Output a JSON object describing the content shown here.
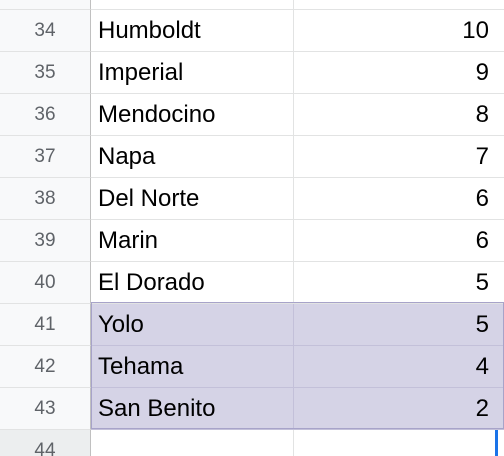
{
  "sheet": {
    "rows": [
      {
        "number": "34",
        "county": "Humboldt",
        "value": "10",
        "selected": false
      },
      {
        "number": "35",
        "county": "Imperial",
        "value": "9",
        "selected": false
      },
      {
        "number": "36",
        "county": "Mendocino",
        "value": "8",
        "selected": false
      },
      {
        "number": "37",
        "county": "Napa",
        "value": "7",
        "selected": false
      },
      {
        "number": "38",
        "county": "Del Norte",
        "value": "6",
        "selected": false
      },
      {
        "number": "39",
        "county": "Marin",
        "value": "6",
        "selected": false
      },
      {
        "number": "40",
        "county": "El Dorado",
        "value": "5",
        "selected": false
      },
      {
        "number": "41",
        "county": "Yolo",
        "value": "5",
        "selected": true
      },
      {
        "number": "42",
        "county": "Tehama",
        "value": "4",
        "selected": true
      },
      {
        "number": "43",
        "county": "San Benito",
        "value": "2",
        "selected": true
      },
      {
        "number": "44",
        "county": "",
        "value": "",
        "selected": false
      }
    ],
    "colors": {
      "selection_fill": "#d5d3e6",
      "header_bg": "#f8f9fa",
      "grid_line": "#e2e3e3",
      "cursor": "#1a73e8"
    }
  }
}
